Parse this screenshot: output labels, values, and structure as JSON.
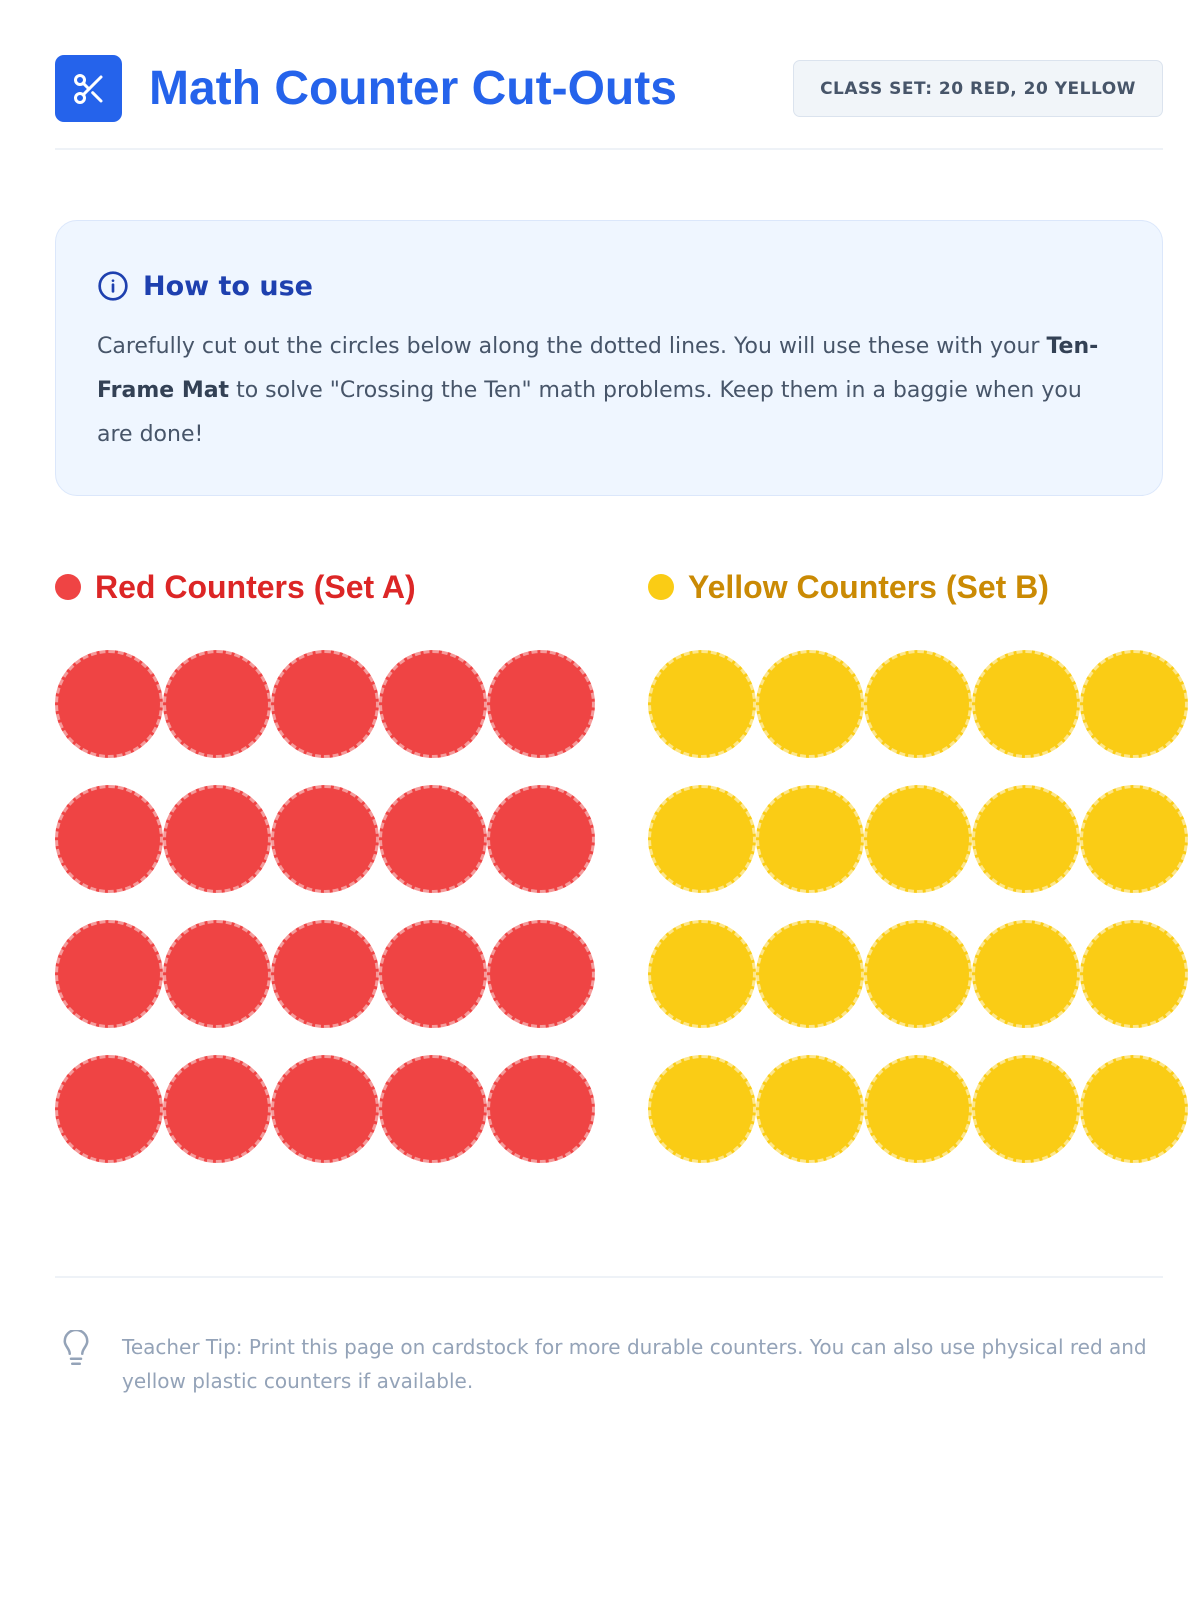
{
  "header": {
    "title": "Math Counter Cut-Outs",
    "badge": "CLASS SET: 20 RED, 20 YELLOW",
    "logo_icon": "scissors-icon"
  },
  "info": {
    "icon": "info-icon",
    "title": "How to use",
    "text_before": "Carefully cut out the circles below along the dotted lines. You will use these with your ",
    "text_bold": "Ten-Frame Mat",
    "text_after": " to solve \"Crossing the Ten\" math problems. Keep them in a baggie when you are done!"
  },
  "sections": [
    {
      "title": "Red Counters (Set A)",
      "color": "#ef4444",
      "count": 20
    },
    {
      "title": "Yellow Counters (Set B)",
      "color": "#facc15",
      "count": 20
    }
  ],
  "footer": {
    "icon": "lightbulb-icon",
    "tip": "Teacher Tip: Print this page on cardstock for more durable counters. You can also use physical red and yellow plastic counters if available."
  }
}
